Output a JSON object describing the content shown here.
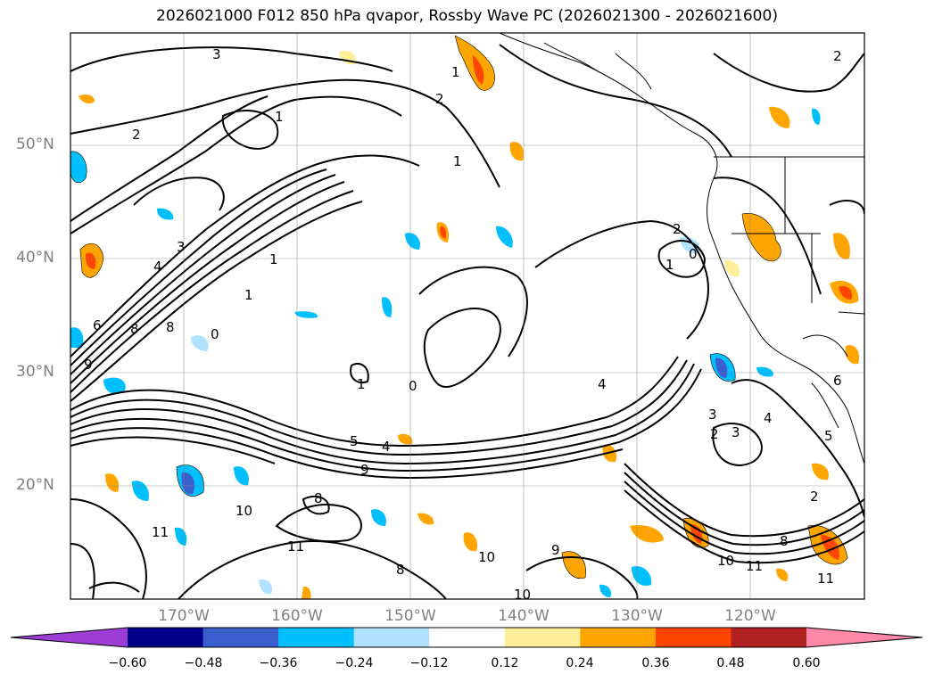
{
  "title": "2026021000 F012 850 hPa qvapor, Rossby Wave PC (2026021300 - 2026021600)",
  "map": {
    "lat_range": [
      10,
      60
    ],
    "lon_range": [
      -180,
      -110
    ],
    "lat_ticks": [
      {
        "value": 50,
        "label": "50°N"
      },
      {
        "value": 40,
        "label": "40°N"
      },
      {
        "value": 30,
        "label": "30°N"
      },
      {
        "value": 20,
        "label": "20°N"
      }
    ],
    "lon_ticks": [
      {
        "value": -170,
        "label": "170°W"
      },
      {
        "value": -160,
        "label": "160°W"
      },
      {
        "value": -150,
        "label": "150°W"
      },
      {
        "value": -140,
        "label": "140°W"
      },
      {
        "value": -130,
        "label": "130°W"
      },
      {
        "value": -120,
        "label": "120°W"
      }
    ],
    "gridlines": true,
    "coastlines": true
  },
  "contour_labels": [
    "3",
    "2",
    "1",
    "2",
    "1",
    "1",
    "1",
    "2",
    "3",
    "4",
    "6",
    "8",
    "8",
    "9",
    "1",
    "0",
    "1",
    "0",
    "4",
    "4",
    "5",
    "9",
    "10",
    "11",
    "10",
    "11",
    "9",
    "8",
    "8",
    "10",
    "11",
    "8",
    "10",
    "11",
    "2",
    "3",
    "2",
    "3",
    "4",
    "5",
    "6",
    "0",
    "1",
    "2"
  ],
  "colorbar": {
    "extend": "both",
    "colors": [
      "#9c3dd6",
      "#00008b",
      "#3a5fcd",
      "#00bfff",
      "#b0e2ff",
      "#ffffff",
      "#ffee99",
      "#ffa500",
      "#ff4500",
      "#b22222",
      "#ff88aa"
    ],
    "ticks": [
      "−0.60",
      "−0.48",
      "−0.36",
      "−0.24",
      "−0.12",
      "0.12",
      "0.24",
      "0.36",
      "0.48",
      "0.60"
    ]
  }
}
